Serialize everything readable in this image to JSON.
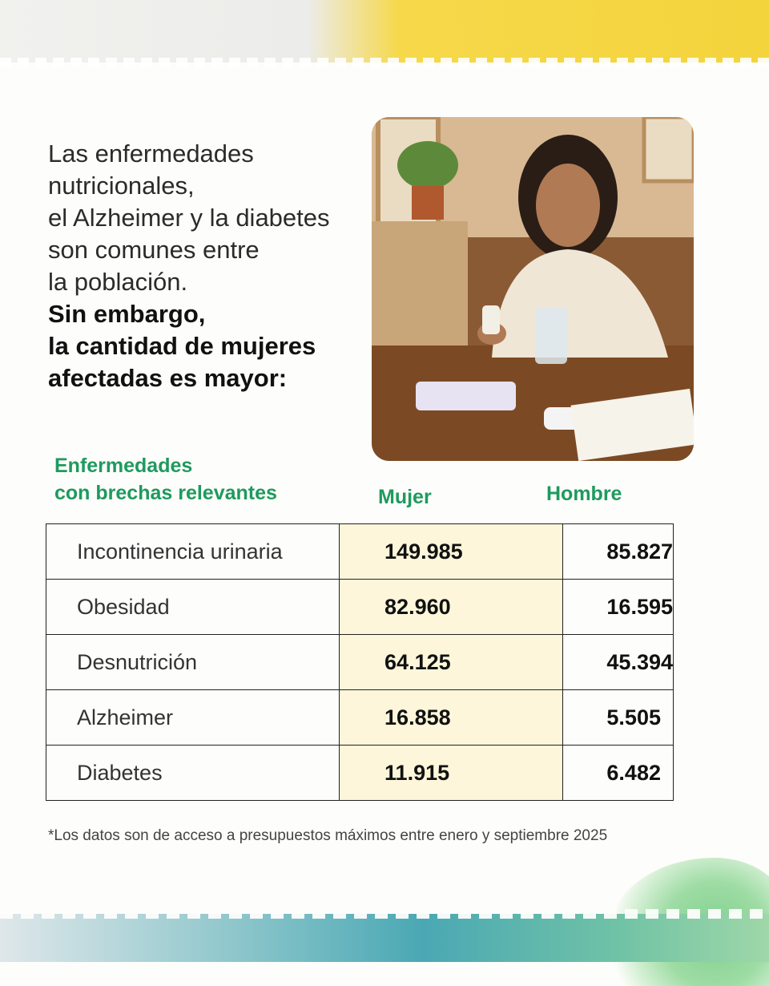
{
  "intro": {
    "line1": "Las enfermedades",
    "line2": "nutricionales,",
    "line3": "el Alzheimer y la diabetes",
    "line4": "son comunes entre",
    "line5": "la población.",
    "bold1": "Sin embargo,",
    "bold2": "la cantidad de mujeres",
    "bold3": "afectadas es mayor:"
  },
  "table": {
    "heading_line1": "Enfermedades",
    "heading_line2": "con brechas relevantes",
    "col_mujer": "Mujer",
    "col_hombre": "Hombre",
    "rows": [
      {
        "name": "Incontinencia urinaria",
        "mujer": "149.985",
        "hombre": "85.827"
      },
      {
        "name": "Obesidad",
        "mujer": "82.960",
        "hombre": "16.595"
      },
      {
        "name": "Desnutrición",
        "mujer": "64.125",
        "hombre": "45.394"
      },
      {
        "name": "Alzheimer",
        "mujer": "16.858",
        "hombre": "5.505"
      },
      {
        "name": "Diabetes",
        "mujer": "11.915",
        "hombre": "6.482"
      }
    ]
  },
  "footnote": "*Los datos son de acceso a presupuestos máximos entre enero y septiembre 2025",
  "colors": {
    "accent_green": "#1e9a5e",
    "highlight_column": "#fdf6da",
    "top_band_yellow": "#f4d43c"
  }
}
